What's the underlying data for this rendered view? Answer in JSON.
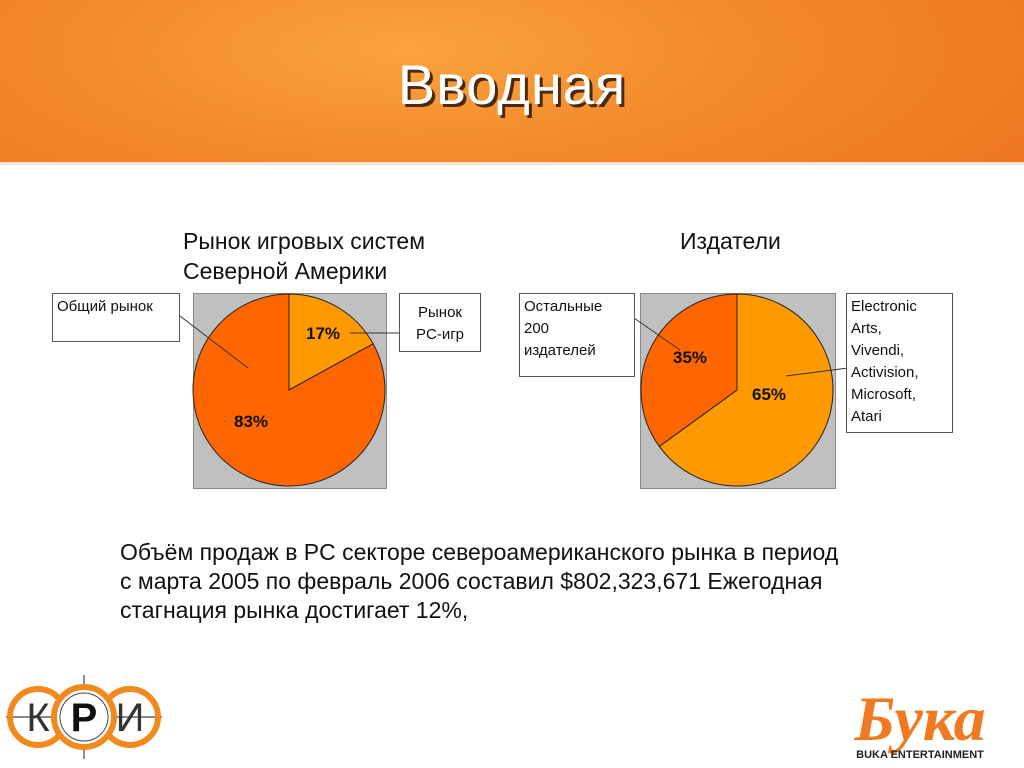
{
  "slide": {
    "title": "Вводная"
  },
  "chart_data": [
    {
      "type": "pie",
      "title": "Рынок  игровых систем Северной Америки",
      "labels": [
        "Общий рынок",
        "Рынок PC-игр"
      ],
      "values": [
        83,
        17
      ],
      "value_labels": [
        "83%",
        "17%"
      ],
      "colors": [
        "#ff6600",
        "#ff9900"
      ]
    },
    {
      "type": "pie",
      "title": "Издатели",
      "labels": [
        "Electronic Arts, Vivendi, Activision, Microsoft, Atari",
        "Остальные 200 издателей"
      ],
      "values": [
        65,
        35
      ],
      "value_labels": [
        "65%",
        "35%"
      ],
      "colors": [
        "#ff9900",
        "#ff6600"
      ]
    }
  ],
  "callouts": {
    "c1_total": "Общий рынок",
    "c1_pc_line1": "Рынок",
    "c1_pc_line2": "PC-игр",
    "c2_others_line1": "Остальные",
    "c2_others_line2": "200",
    "c2_others_line3": "издателей",
    "c2_top_line1": "Electronic",
    "c2_top_line2": "Arts,",
    "c2_top_line3": "Vivendi,",
    "c2_top_line4": "Activision,",
    "c2_top_line5": "Microsoft,",
    "c2_top_line6": "Atari"
  },
  "body": {
    "line1": "Объём продаж в PC секторе североамериканского рынка в период",
    "line2": "с марта 2005 по февраль 2006 составил $802,323,671 Ежегодная",
    "line3": "стагнация рынка достигает 12%,"
  },
  "logos": {
    "kri_letters": [
      "К",
      "Р",
      "И"
    ],
    "buka_wordmark": "Бука",
    "buka_caption": "BUKA ENTERTAINMENT"
  }
}
